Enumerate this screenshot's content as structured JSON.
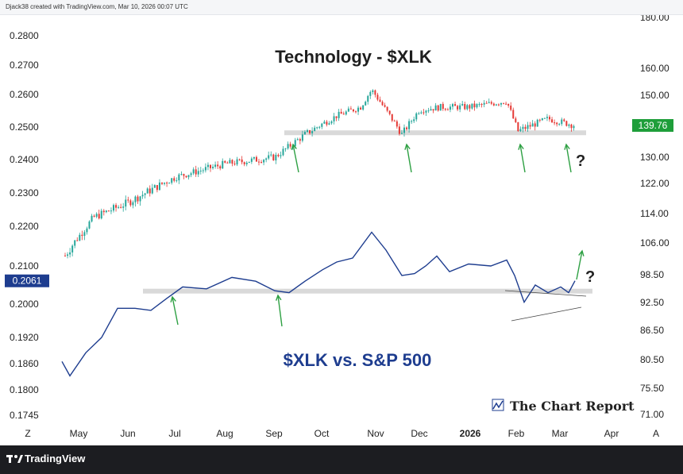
{
  "header": {
    "attribution": "Djack38 created with TradingView.com, Mar 10, 2026 00:07 UTC"
  },
  "footer": {
    "brand": "TradingView"
  },
  "annotations": {
    "xlk_title": "Technology - $XLK",
    "ratio_title": "$XLK vs. S&P 500",
    "brand": "The Chart Report",
    "question_mark": "?"
  },
  "colors": {
    "up": "#26a69a",
    "down": "#e53935",
    "ratio_line": "#1e3d8f",
    "arrow": "#2ea043",
    "support_band": "#d9d9d9",
    "price_badge": "#1e9e3a",
    "ratio_badge": "#1e3d8f"
  },
  "chart_data": [
    {
      "type": "candlestick",
      "title": "Technology - $XLK",
      "axis": "right",
      "ylim": [
        71.0,
        180.0
      ],
      "y_ticks": [
        "180.00",
        "160.00",
        "150.00",
        "140.00",
        "130.00",
        "122.00",
        "114.00",
        "106.00",
        "98.50",
        "92.50",
        "86.50",
        "80.50",
        "75.50",
        "71.00"
      ],
      "last_price": "139.76",
      "support_level": 137.5,
      "trend_points": [
        {
          "x": "Apr 22",
          "y": 103
        },
        {
          "x": "May 10",
          "y": 113
        },
        {
          "x": "Jun 1",
          "y": 117
        },
        {
          "x": "Jul 1",
          "y": 124
        },
        {
          "x": "Aug 1",
          "y": 128
        },
        {
          "x": "Sep 1",
          "y": 130
        },
        {
          "x": "Sep 20",
          "y": 137
        },
        {
          "x": "Oct 10",
          "y": 143
        },
        {
          "x": "Oct 25",
          "y": 146
        },
        {
          "x": "Nov 1",
          "y": 152
        },
        {
          "x": "Nov 20",
          "y": 137
        },
        {
          "x": "Dec 1",
          "y": 145
        },
        {
          "x": "Dec 15",
          "y": 146
        },
        {
          "x": "Jan 1",
          "y": 146
        },
        {
          "x": "Jan 25",
          "y": 148
        },
        {
          "x": "Feb 1",
          "y": 138
        },
        {
          "x": "Feb 20",
          "y": 142
        },
        {
          "x": "Mar 9",
          "y": 139.76
        }
      ],
      "arrows_at": [
        "Sep 15",
        "Nov 20",
        "Jan 30",
        "Mar 5"
      ]
    },
    {
      "type": "line",
      "title": "$XLK vs. S&P 500",
      "axis": "left",
      "ylim": [
        0.1745,
        0.28
      ],
      "y_ticks": [
        "0.2800",
        "0.2700",
        "0.2600",
        "0.2500",
        "0.2400",
        "0.2300",
        "0.2200",
        "0.2100",
        "0.2000",
        "0.1920",
        "0.1860",
        "0.1800",
        "0.1745"
      ],
      "last_value": "0.2061",
      "support_level": 0.2034,
      "points": [
        {
          "x": "Apr 20",
          "y": 0.1865
        },
        {
          "x": "Apr 25",
          "y": 0.1832
        },
        {
          "x": "May 5",
          "y": 0.1885
        },
        {
          "x": "May 15",
          "y": 0.192
        },
        {
          "x": "May 25",
          "y": 0.199
        },
        {
          "x": "Jun 5",
          "y": 0.199
        },
        {
          "x": "Jun 15",
          "y": 0.1985
        },
        {
          "x": "Jun 25",
          "y": 0.2015
        },
        {
          "x": "Jul 5",
          "y": 0.2045
        },
        {
          "x": "Jul 20",
          "y": 0.204
        },
        {
          "x": "Aug 5",
          "y": 0.207
        },
        {
          "x": "Aug 20",
          "y": 0.206
        },
        {
          "x": "Sep 1",
          "y": 0.2035
        },
        {
          "x": "Sep 10",
          "y": 0.203
        },
        {
          "x": "Sep 20",
          "y": 0.206
        },
        {
          "x": "Oct 1",
          "y": 0.209
        },
        {
          "x": "Oct 10",
          "y": 0.211
        },
        {
          "x": "Oct 20",
          "y": 0.212
        },
        {
          "x": "Nov 1",
          "y": 0.2185
        },
        {
          "x": "Nov 10",
          "y": 0.214
        },
        {
          "x": "Nov 20",
          "y": 0.2075
        },
        {
          "x": "Nov 28",
          "y": 0.208
        },
        {
          "x": "Dec 5",
          "y": 0.21
        },
        {
          "x": "Dec 12",
          "y": 0.2125
        },
        {
          "x": "Dec 20",
          "y": 0.2085
        },
        {
          "x": "Jan 1",
          "y": 0.2105
        },
        {
          "x": "Jan 15",
          "y": 0.21
        },
        {
          "x": "Jan 25",
          "y": 0.2115
        },
        {
          "x": "Jan 30",
          "y": 0.2075
        },
        {
          "x": "Feb 5",
          "y": 0.2005
        },
        {
          "x": "Feb 12",
          "y": 0.205
        },
        {
          "x": "Feb 20",
          "y": 0.203
        },
        {
          "x": "Feb 28",
          "y": 0.2045
        },
        {
          "x": "Mar 5",
          "y": 0.203
        },
        {
          "x": "Mar 9",
          "y": 0.2061
        }
      ],
      "arrows_at": [
        "Jul 5",
        "Sep 12"
      ]
    }
  ],
  "x_axis": {
    "months": [
      "Z",
      "May",
      "Jun",
      "Jul",
      "Aug",
      "Sep",
      "Oct",
      "Nov",
      "Dec",
      "2026",
      "Feb",
      "Mar",
      "Apr",
      "A"
    ]
  }
}
